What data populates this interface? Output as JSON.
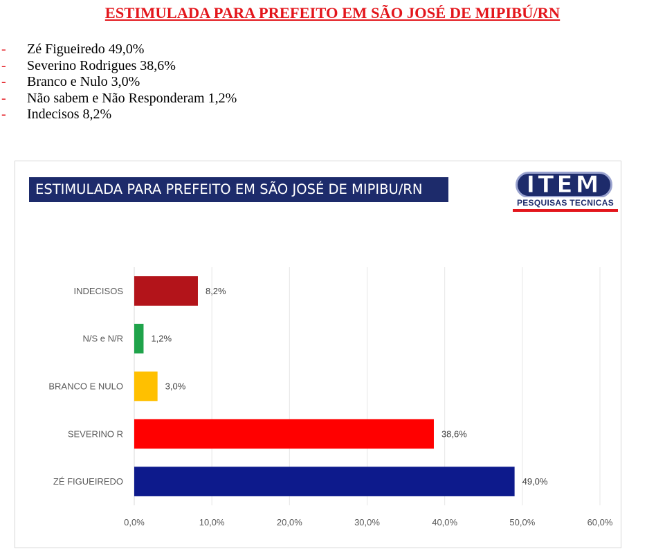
{
  "document": {
    "title": "ESTIMULADA PARA PREFEITO EM SÃO JOSÉ DE MIPIBÚ/RN",
    "bullet": "-",
    "results": [
      "Zé Figueiredo 49,0%",
      "Severino Rodrigues 38,6%",
      "Branco e Nulo 3,0%",
      "Não sabem e Não Responderam 1,2%",
      "Indecisos 8,2%"
    ]
  },
  "logo": {
    "name": "ITEM",
    "tagline": "PESQUISAS TECNICAS"
  },
  "chart_data": {
    "type": "bar",
    "orientation": "horizontal",
    "title": "ESTIMULADA PARA PREFEITO EM SÃO JOSÉ DE MIPIBU/RN",
    "categories": [
      "INDECISOS",
      "N/S e N/R",
      "BRANCO E NULO",
      "SEVERINO R",
      "ZÉ FIGUEIREDO"
    ],
    "values": [
      8.2,
      1.2,
      3.0,
      38.6,
      49.0
    ],
    "value_labels": [
      "8,2%",
      "1,2%",
      "3,0%",
      "38,6%",
      "49,0%"
    ],
    "colors": [
      "#b3141a",
      "#1fa34a",
      "#ffc000",
      "#ff0000",
      "#0d1a8c"
    ],
    "xlim": [
      0,
      60
    ],
    "xticks": [
      "0,0%",
      "10,0%",
      "20,0%",
      "30,0%",
      "40,0%",
      "50,0%",
      "60,0%"
    ],
    "grid": true,
    "legend": "none"
  }
}
